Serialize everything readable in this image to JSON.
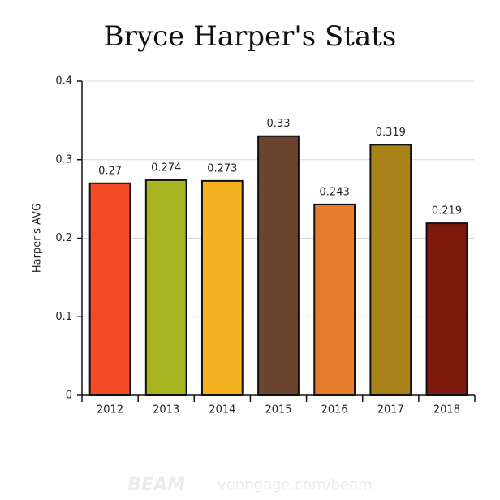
{
  "chart_data": {
    "type": "bar",
    "title": "Bryce Harper's Stats",
    "y_label": "Harper's AVG",
    "categories": [
      "2012",
      "2013",
      "2014",
      "2015",
      "2016",
      "2017",
      "2018"
    ],
    "values": [
      0.27,
      0.274,
      0.273,
      0.33,
      0.243,
      0.319,
      0.219
    ],
    "colors": [
      "#f44a25",
      "#a9b520",
      "#f4b223",
      "#6b4530",
      "#e87e2c",
      "#a98119",
      "#7d1a0b"
    ],
    "ylim": [
      0,
      0.4
    ],
    "yticks": [
      0,
      0.1,
      0.2,
      0.3,
      0.4
    ],
    "grid": true,
    "watermark": {
      "brand": "BEAM",
      "url": "venngage.com/beam"
    }
  }
}
